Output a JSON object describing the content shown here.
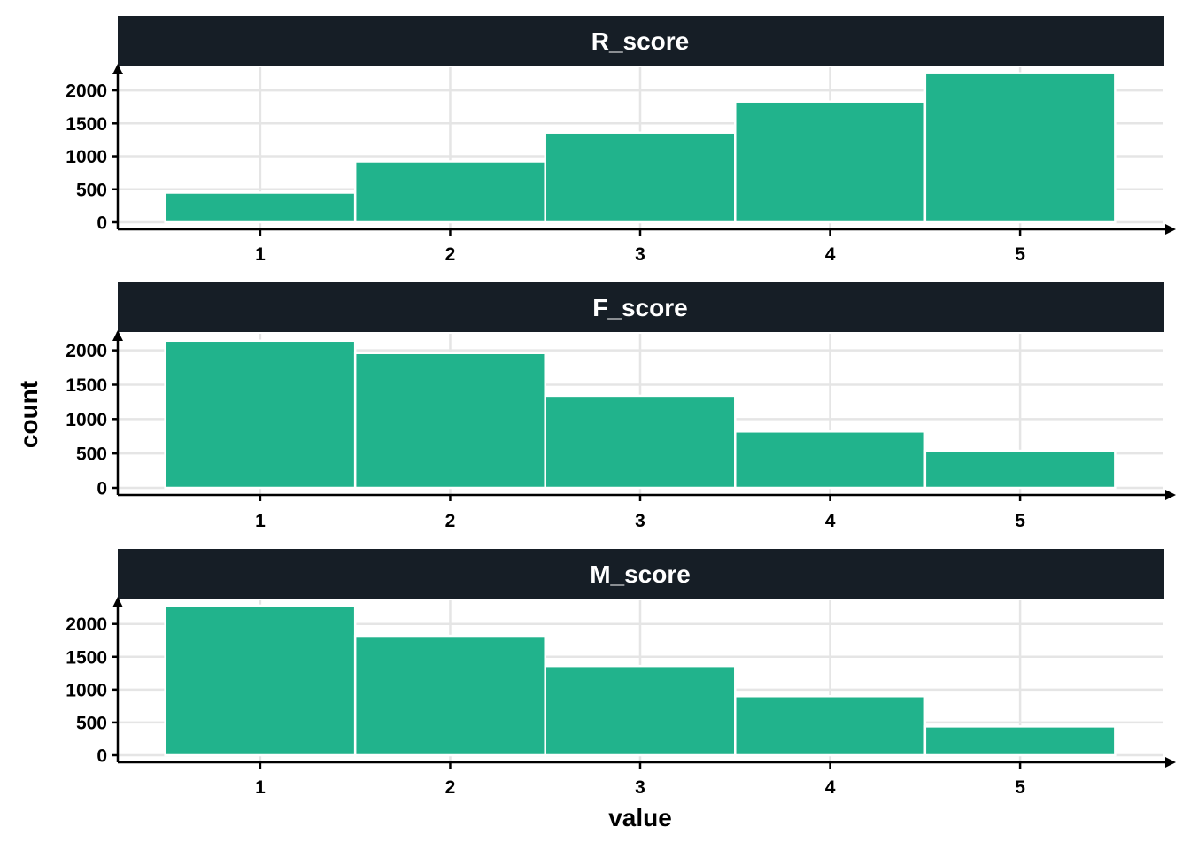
{
  "chart_data": {
    "type": "bar",
    "layout": "facet_wrap_1col",
    "xlabel": "value",
    "ylabel": "count",
    "bar_color": "#21B38C",
    "strip_color": "#161E26",
    "grid": true,
    "categories": [
      1,
      2,
      3,
      4,
      5
    ],
    "facets": [
      {
        "name": "R_score",
        "values": [
          450,
          920,
          1360,
          1830,
          2260
        ],
        "ylim": [
          0,
          2350
        ],
        "yticks": [
          0,
          500,
          1000,
          1500,
          2000
        ]
      },
      {
        "name": "F_score",
        "values": [
          2140,
          1960,
          1340,
          820,
          540
        ],
        "ylim": [
          0,
          2240
        ],
        "yticks": [
          0,
          500,
          1000,
          1500,
          2000
        ]
      },
      {
        "name": "M_score",
        "values": [
          2280,
          1820,
          1360,
          900,
          440
        ],
        "ylim": [
          0,
          2360
        ],
        "yticks": [
          0,
          500,
          1000,
          1500,
          2000
        ]
      }
    ]
  }
}
